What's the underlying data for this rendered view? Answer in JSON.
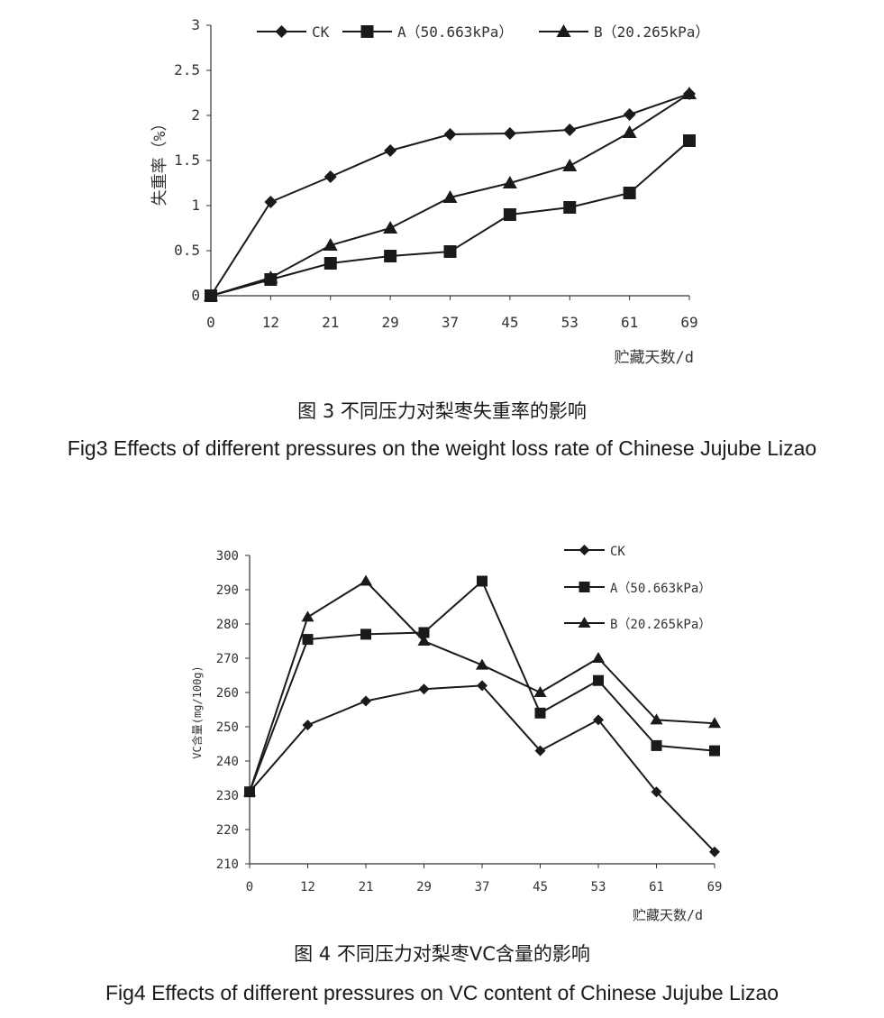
{
  "figure3": {
    "caption_cn": "图 3 不同压力对梨枣失重率的影响",
    "caption_en": "Fig3  Effects of different pressures on the weight loss rate of Chinese Jujube Lizao"
  },
  "figure4": {
    "caption_cn": "图 4 不同压力对梨枣VC含量的影响",
    "caption_en": "Fig4  Effects of different pressures on VC content of Chinese Jujube Lizao"
  },
  "chart_data": [
    {
      "type": "line",
      "title": "",
      "xlabel": "贮藏天数/d",
      "ylabel": "失重率（%）",
      "categories": [
        "0",
        "12",
        "21",
        "29",
        "37",
        "45",
        "53",
        "61",
        "69"
      ],
      "ylim": [
        0,
        3
      ],
      "yticks": [
        "0",
        "0.5",
        "1",
        "1.5",
        "2",
        "2.5",
        "3"
      ],
      "legend_position": "top",
      "grid": false,
      "series": [
        {
          "name": "CK",
          "marker": "diamond",
          "values": [
            0,
            1.04,
            1.32,
            1.61,
            1.79,
            1.8,
            1.84,
            2.01,
            2.24
          ]
        },
        {
          "name": "A（50.663kPa）",
          "marker": "square",
          "values": [
            0,
            0.18,
            0.36,
            0.44,
            0.49,
            0.9,
            0.98,
            1.14,
            1.72
          ]
        },
        {
          "name": "B（20.265kPa）",
          "marker": "triangle",
          "values": [
            0,
            0.2,
            0.56,
            0.75,
            1.09,
            1.25,
            1.44,
            1.81,
            2.24
          ]
        }
      ]
    },
    {
      "type": "line",
      "title": "",
      "xlabel": "贮藏天数/d",
      "ylabel": "VC含量(mg/100g)",
      "categories": [
        "0",
        "12",
        "21",
        "29",
        "37",
        "45",
        "53",
        "61",
        "69"
      ],
      "ylim": [
        210,
        300
      ],
      "yticks": [
        "210",
        "220",
        "230",
        "240",
        "250",
        "260",
        "270",
        "280",
        "290",
        "300"
      ],
      "legend_position": "top-right",
      "grid": false,
      "series": [
        {
          "name": "CK",
          "marker": "diamond",
          "values": [
            231,
            250.5,
            257.5,
            261,
            262,
            243,
            252,
            231,
            213.5
          ]
        },
        {
          "name": "A（50.663kPa）",
          "marker": "square",
          "values": [
            231,
            275.5,
            277,
            277.5,
            292.5,
            254,
            263.5,
            244.5,
            243
          ]
        },
        {
          "name": "B（20.265kPa）",
          "marker": "triangle",
          "values": [
            231,
            282,
            292.5,
            275,
            268,
            260,
            270,
            252,
            251
          ]
        }
      ]
    }
  ]
}
